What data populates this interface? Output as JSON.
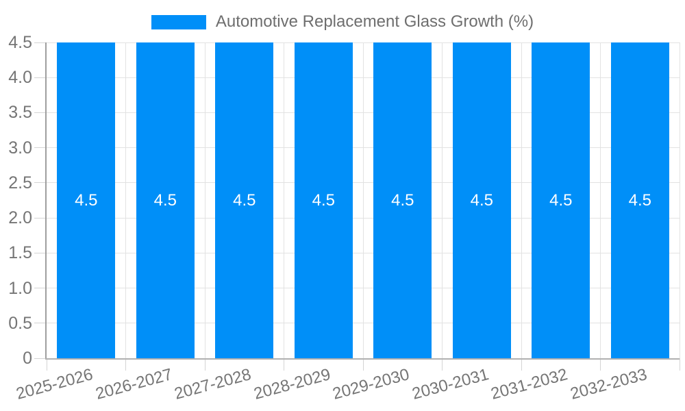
{
  "chart_data": {
    "type": "bar",
    "title": "",
    "xlabel": "",
    "ylabel": "",
    "categories": [
      "2025-2026",
      "2026-2027",
      "2027-2028",
      "2028-2029",
      "2029-2030",
      "2030-2031",
      "2031-2032",
      "2032-2033"
    ],
    "series": [
      {
        "name": "Automotive Replacement Glass Growth (%)",
        "values": [
          4.5,
          4.5,
          4.5,
          4.5,
          4.5,
          4.5,
          4.5,
          4.5
        ]
      }
    ],
    "bar_value_labels": [
      "4.5",
      "4.5",
      "4.5",
      "4.5",
      "4.5",
      "4.5",
      "4.5",
      "4.5"
    ],
    "ylim": [
      0,
      4.5
    ],
    "yticks": [
      {
        "value": 0,
        "label": "0"
      },
      {
        "value": 0.5,
        "label": "0.5"
      },
      {
        "value": 1,
        "label": "1.0"
      },
      {
        "value": 1.5,
        "label": "1.5"
      },
      {
        "value": 2,
        "label": "2.0"
      },
      {
        "value": 2.5,
        "label": "2.5"
      },
      {
        "value": 3,
        "label": "3.0"
      },
      {
        "value": 3.5,
        "label": "3.5"
      },
      {
        "value": 4,
        "label": "4.0"
      },
      {
        "value": 4.5,
        "label": "4.5"
      }
    ],
    "legend_position": "top",
    "grid": true,
    "colors": {
      "bar": "#008ff8",
      "grid": "#e2e2e2",
      "tick": "#d4d4d4",
      "axis_y": "#9e9e9e",
      "axis_x": "#b0b0b0",
      "text": "#757575",
      "legend_text": "#6e6e6e",
      "bar_label": "#ffffff",
      "background": "#ffffff"
    }
  }
}
